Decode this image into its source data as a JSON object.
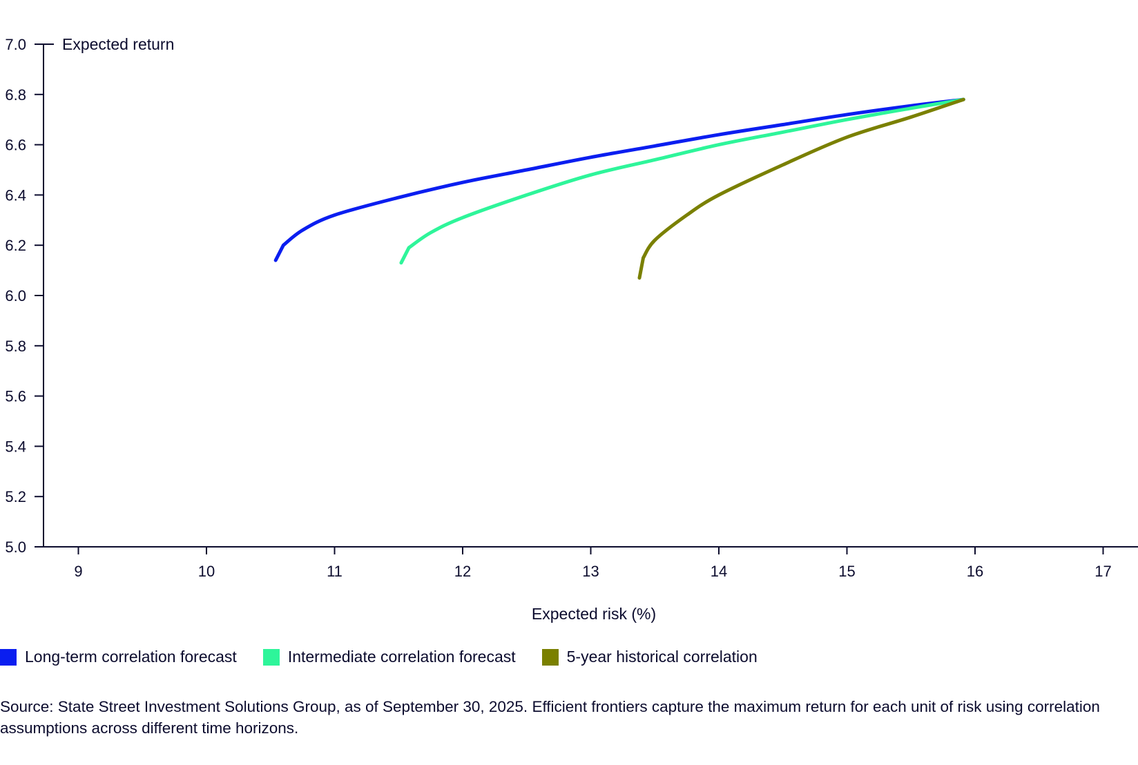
{
  "chart_data": {
    "type": "line",
    "title": "",
    "xlabel": "Expected risk (%)",
    "ylabel": "Expected return",
    "xlim": [
      8.73,
      17.3
    ],
    "ylim": [
      5.0,
      7.0
    ],
    "xticks": [
      "9",
      "10",
      "11",
      "12",
      "13",
      "14",
      "15",
      "16",
      "17"
    ],
    "yticks": [
      "7.0",
      "6.8",
      "6.6",
      "6.4",
      "6.2",
      "6.0",
      "5.8",
      "5.6",
      "5.4",
      "5.2",
      "5.0"
    ],
    "grid": false,
    "legend_position": "bottom-left",
    "series": [
      {
        "name": "Long-term correlation forecast",
        "color": "#0a1ef0",
        "points": [
          [
            10.54,
            6.14
          ],
          [
            10.6,
            6.2
          ],
          [
            10.75,
            6.26
          ],
          [
            11.0,
            6.32
          ],
          [
            11.5,
            6.39
          ],
          [
            12.0,
            6.45
          ],
          [
            12.5,
            6.5
          ],
          [
            13.0,
            6.55
          ],
          [
            13.5,
            6.595
          ],
          [
            14.0,
            6.64
          ],
          [
            14.5,
            6.68
          ],
          [
            15.0,
            6.72
          ],
          [
            15.5,
            6.755
          ],
          [
            15.91,
            6.78
          ]
        ]
      },
      {
        "name": "Intermediate correlation forecast",
        "color": "#2ef59a",
        "points": [
          [
            11.52,
            6.13
          ],
          [
            11.58,
            6.19
          ],
          [
            11.75,
            6.25
          ],
          [
            12.0,
            6.31
          ],
          [
            12.5,
            6.4
          ],
          [
            13.0,
            6.48
          ],
          [
            13.5,
            6.54
          ],
          [
            14.0,
            6.6
          ],
          [
            14.5,
            6.65
          ],
          [
            15.0,
            6.7
          ],
          [
            15.5,
            6.745
          ],
          [
            15.91,
            6.78
          ]
        ]
      },
      {
        "name": "5-year historical correlation",
        "color": "#7a8000",
        "points": [
          [
            13.38,
            6.07
          ],
          [
            13.41,
            6.15
          ],
          [
            13.5,
            6.22
          ],
          [
            13.75,
            6.32
          ],
          [
            14.0,
            6.4
          ],
          [
            14.5,
            6.52
          ],
          [
            15.0,
            6.63
          ],
          [
            15.5,
            6.71
          ],
          [
            15.91,
            6.78
          ]
        ]
      }
    ]
  },
  "source_note": "Source: State Street Investment Solutions Group, as of September 30, 2025. Efficient frontiers capture the maximum return for each unit of risk using correlation assumptions across different time horizons."
}
